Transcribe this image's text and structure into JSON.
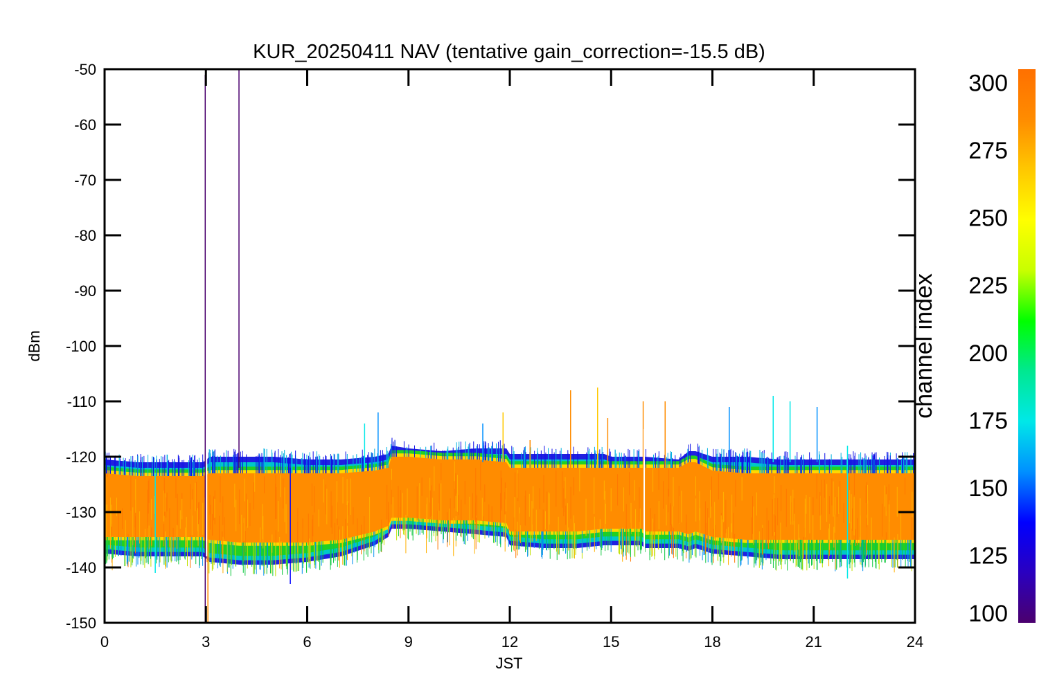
{
  "chart_data": {
    "type": "line",
    "title": "KUR_20250411 NAV (tentative gain_correction=-15.5 dB)",
    "xlabel": "JST",
    "ylabel": "dBm",
    "xlim": [
      0,
      24
    ],
    "ylim": [
      -150,
      -50
    ],
    "x_ticks": [
      "0",
      "3",
      "6",
      "9",
      "12",
      "15",
      "18",
      "21",
      "24"
    ],
    "y_ticks": [
      "-50",
      "-60",
      "-70",
      "-80",
      "-90",
      "-100",
      "-110",
      "-120",
      "-130",
      "-140",
      "-150"
    ],
    "grid": false,
    "colorbar": {
      "label": "channel index",
      "range": [
        100,
        305
      ],
      "ticks": [
        "300",
        "275",
        "250",
        "225",
        "200",
        "175",
        "150",
        "125",
        "100"
      ],
      "colormap": [
        "#4b006e",
        "#2a00c0",
        "#0000ff",
        "#0090ff",
        "#00e8e8",
        "#00e890",
        "#00ff00",
        "#c8ff00",
        "#ffff00",
        "#ffc800",
        "#ff8c00",
        "#ff7000"
      ]
    },
    "envelope": {
      "x": [
        0,
        1,
        2,
        2.95,
        3.1,
        4,
        5,
        6,
        7,
        8,
        8.4,
        8.5,
        9,
        10,
        11,
        11.9,
        12,
        13,
        14,
        14.8,
        15,
        15.9,
        16,
        17,
        17.3,
        17.5,
        18,
        19,
        20,
        21,
        22,
        23,
        24
      ],
      "blue_upper": [
        -120.5,
        -121,
        -121,
        -121,
        -120,
        -120,
        -120,
        -120.5,
        -120.5,
        -120,
        -119.5,
        -118,
        -118.5,
        -119,
        -118.5,
        -118.5,
        -119.5,
        -119.5,
        -119.5,
        -119.5,
        -120,
        -120,
        -120,
        -120.5,
        -119,
        -119,
        -120,
        -120,
        -120.5,
        -120.5,
        -120.5,
        -120.5,
        -120.5
      ],
      "orange_upper": [
        -123,
        -123.5,
        -123.5,
        -123.5,
        -123,
        -123,
        -123,
        -123,
        -123,
        -122.5,
        -122,
        -120,
        -120,
        -120.5,
        -120.5,
        -121,
        -122,
        -122,
        -122,
        -122,
        -122,
        -122,
        -122,
        -122,
        -121,
        -121,
        -122.5,
        -123,
        -123,
        -123,
        -123,
        -123,
        -123
      ],
      "orange_lower": [
        -134.5,
        -134.5,
        -134.5,
        -134.5,
        -135,
        -135.5,
        -135.5,
        -135.5,
        -135,
        -133.5,
        -132.5,
        -131,
        -131,
        -131.5,
        -131.5,
        -132,
        -133.5,
        -133.5,
        -133.5,
        -133,
        -133,
        -133,
        -133.5,
        -133.5,
        -134,
        -133.5,
        -134.5,
        -135,
        -135,
        -135,
        -135,
        -135,
        -135
      ],
      "green_lower": [
        -137.5,
        -138,
        -138,
        -138,
        -139,
        -139.5,
        -139.5,
        -139,
        -138,
        -136,
        -134.5,
        -133,
        -133,
        -133.5,
        -134,
        -134.5,
        -136,
        -136.5,
        -136.5,
        -136,
        -136,
        -136,
        -136.5,
        -136.5,
        -137,
        -136.5,
        -137.5,
        -138,
        -138.5,
        -138.5,
        -138.5,
        -138.5,
        -138.5
      ]
    },
    "spikes": [
      {
        "x": 2.98,
        "y_top": -51,
        "y_bottom": -150,
        "channel": 105
      },
      {
        "x": 3.98,
        "y_top": -50,
        "y_bottom": -122,
        "channel": 105
      },
      {
        "x": 3.06,
        "y_top": -126,
        "y_bottom": -150,
        "channel": 295
      },
      {
        "x": 1.5,
        "y_top": -123,
        "y_bottom": -141,
        "channel": 170
      },
      {
        "x": 5.5,
        "y_top": -122,
        "y_bottom": -143,
        "channel": 140
      },
      {
        "x": 7.7,
        "y_top": -114,
        "y_bottom": -122,
        "channel": 170
      },
      {
        "x": 8.1,
        "y_top": -112,
        "y_bottom": -122,
        "channel": 150
      },
      {
        "x": 11.2,
        "y_top": -114,
        "y_bottom": -121,
        "channel": 150
      },
      {
        "x": 11.8,
        "y_top": -112,
        "y_bottom": -121,
        "channel": 270
      },
      {
        "x": 12.6,
        "y_top": -117,
        "y_bottom": -122,
        "channel": 280
      },
      {
        "x": 13.8,
        "y_top": -108,
        "y_bottom": -122,
        "channel": 285
      },
      {
        "x": 14.6,
        "y_top": -107.5,
        "y_bottom": -122,
        "channel": 265
      },
      {
        "x": 14.9,
        "y_top": -113,
        "y_bottom": -122,
        "channel": 280
      },
      {
        "x": 15.95,
        "y_top": -110,
        "y_bottom": -122,
        "channel": 295
      },
      {
        "x": 16.6,
        "y_top": -110,
        "y_bottom": -122,
        "channel": 280
      },
      {
        "x": 18.5,
        "y_top": -111,
        "y_bottom": -121,
        "channel": 150
      },
      {
        "x": 19.8,
        "y_top": -109,
        "y_bottom": -121,
        "channel": 180
      },
      {
        "x": 20.3,
        "y_top": -110,
        "y_bottom": -121,
        "channel": 170
      },
      {
        "x": 21.1,
        "y_top": -111,
        "y_bottom": -121,
        "channel": 150
      },
      {
        "x": 22.0,
        "y_top": -118,
        "y_bottom": -142,
        "channel": 170
      }
    ],
    "gaps": [
      {
        "x_start": 3.0,
        "x_end": 3.04
      },
      {
        "x_start": 15.96,
        "x_end": 16.0
      }
    ]
  }
}
